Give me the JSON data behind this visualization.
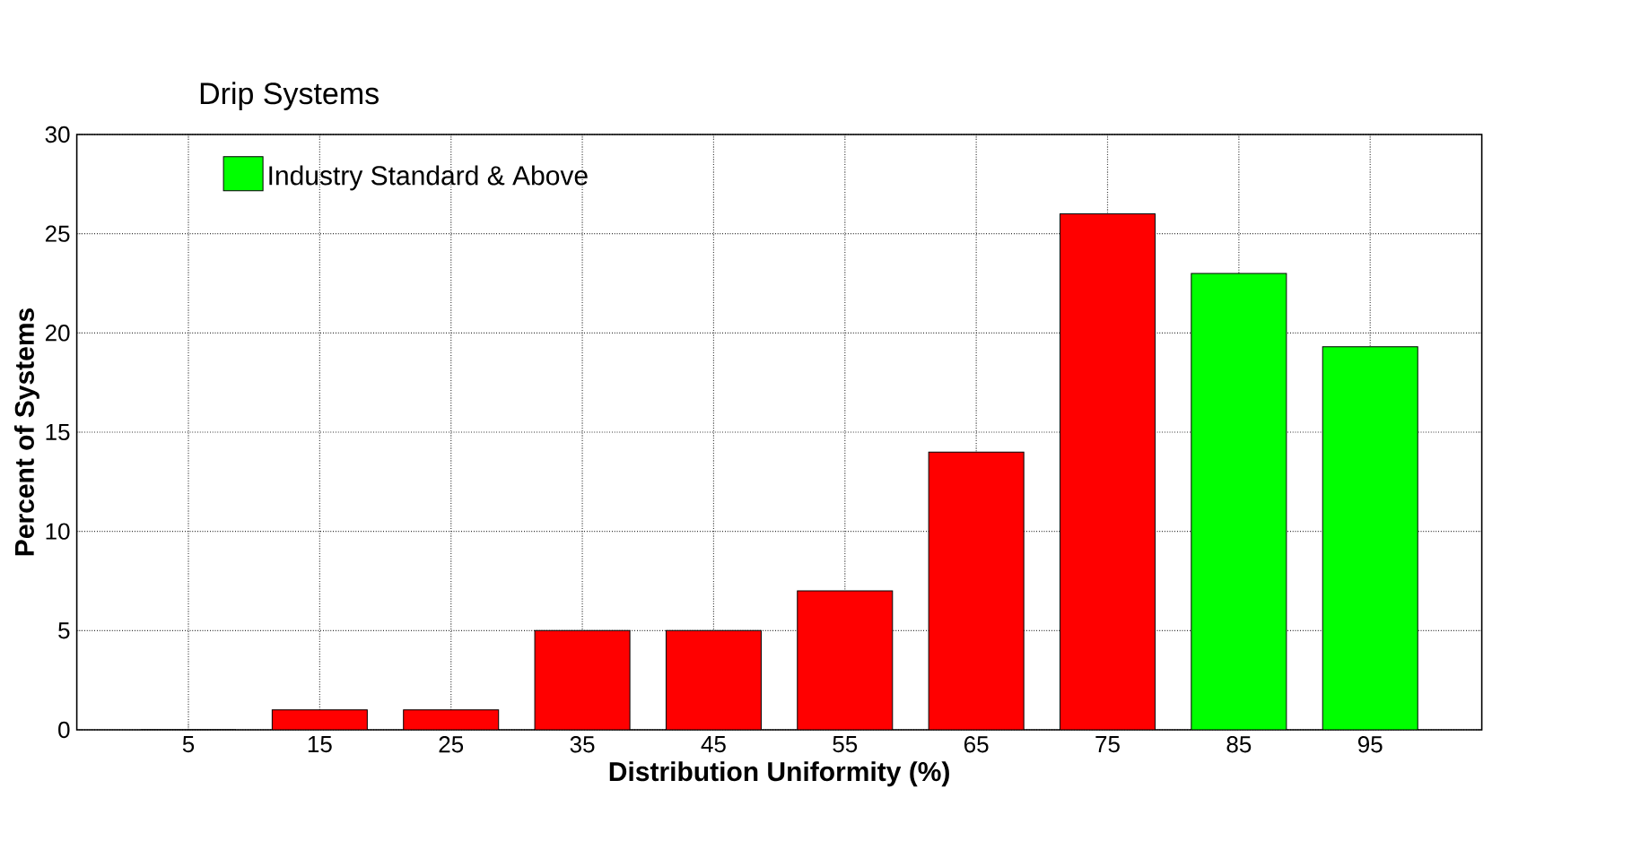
{
  "chart_data": {
    "type": "bar",
    "title": "Drip Systems",
    "xlabel": "Distribution Uniformity (%)",
    "ylabel": "Percent of Systems",
    "categories": [
      "5",
      "15",
      "25",
      "35",
      "45",
      "55",
      "65",
      "75",
      "85",
      "95"
    ],
    "series": [
      {
        "color": "#ff0000",
        "values": [
          0,
          1,
          1,
          5,
          5,
          7,
          14,
          26,
          null,
          null
        ]
      },
      {
        "name": "Industry Standard & Above",
        "color": "#00ff00",
        "values": [
          null,
          null,
          null,
          null,
          null,
          null,
          null,
          null,
          23,
          19.3
        ]
      }
    ],
    "ylim": [
      0,
      30
    ],
    "yticks": [
      0,
      5,
      10,
      15,
      20,
      25,
      30
    ],
    "grid": true,
    "legend": "top left"
  }
}
